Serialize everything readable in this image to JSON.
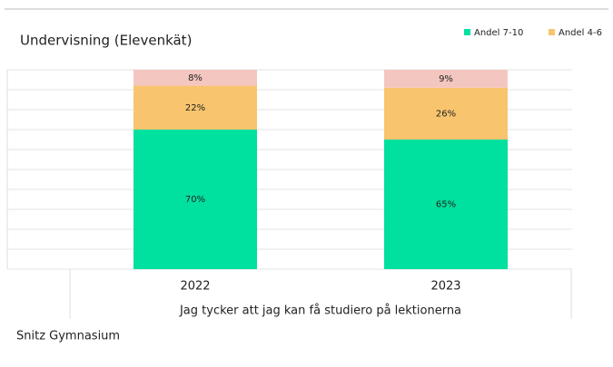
{
  "chart_data": {
    "type": "stacked_bar",
    "title": "Undervisning (Elevenkät)",
    "categories": [
      "2022",
      "2023"
    ],
    "series": [
      {
        "name": "Andel 7-10",
        "color": "#00e09e",
        "values": [
          70,
          65
        ],
        "value_labels": [
          "70%",
          "65%"
        ]
      },
      {
        "name": "Andel 4-6",
        "color": "#f8c46e",
        "values": [
          22,
          26
        ],
        "value_labels": [
          "22%",
          "26%"
        ]
      },
      {
        "color": "#f4c6c0",
        "values": [
          8,
          9
        ],
        "value_labels": [
          "8%",
          "9%"
        ]
      }
    ],
    "xlabel": "Jag tycker att jag kan få studiero på lektionerna",
    "ylim": [
      0,
      100
    ],
    "yticks": [
      0,
      10,
      20,
      30,
      40,
      50,
      60,
      70,
      80,
      90,
      100
    ],
    "ytick_labels": false,
    "grid": true,
    "legend": "top-right"
  },
  "footer": "Snitz Gymnasium"
}
